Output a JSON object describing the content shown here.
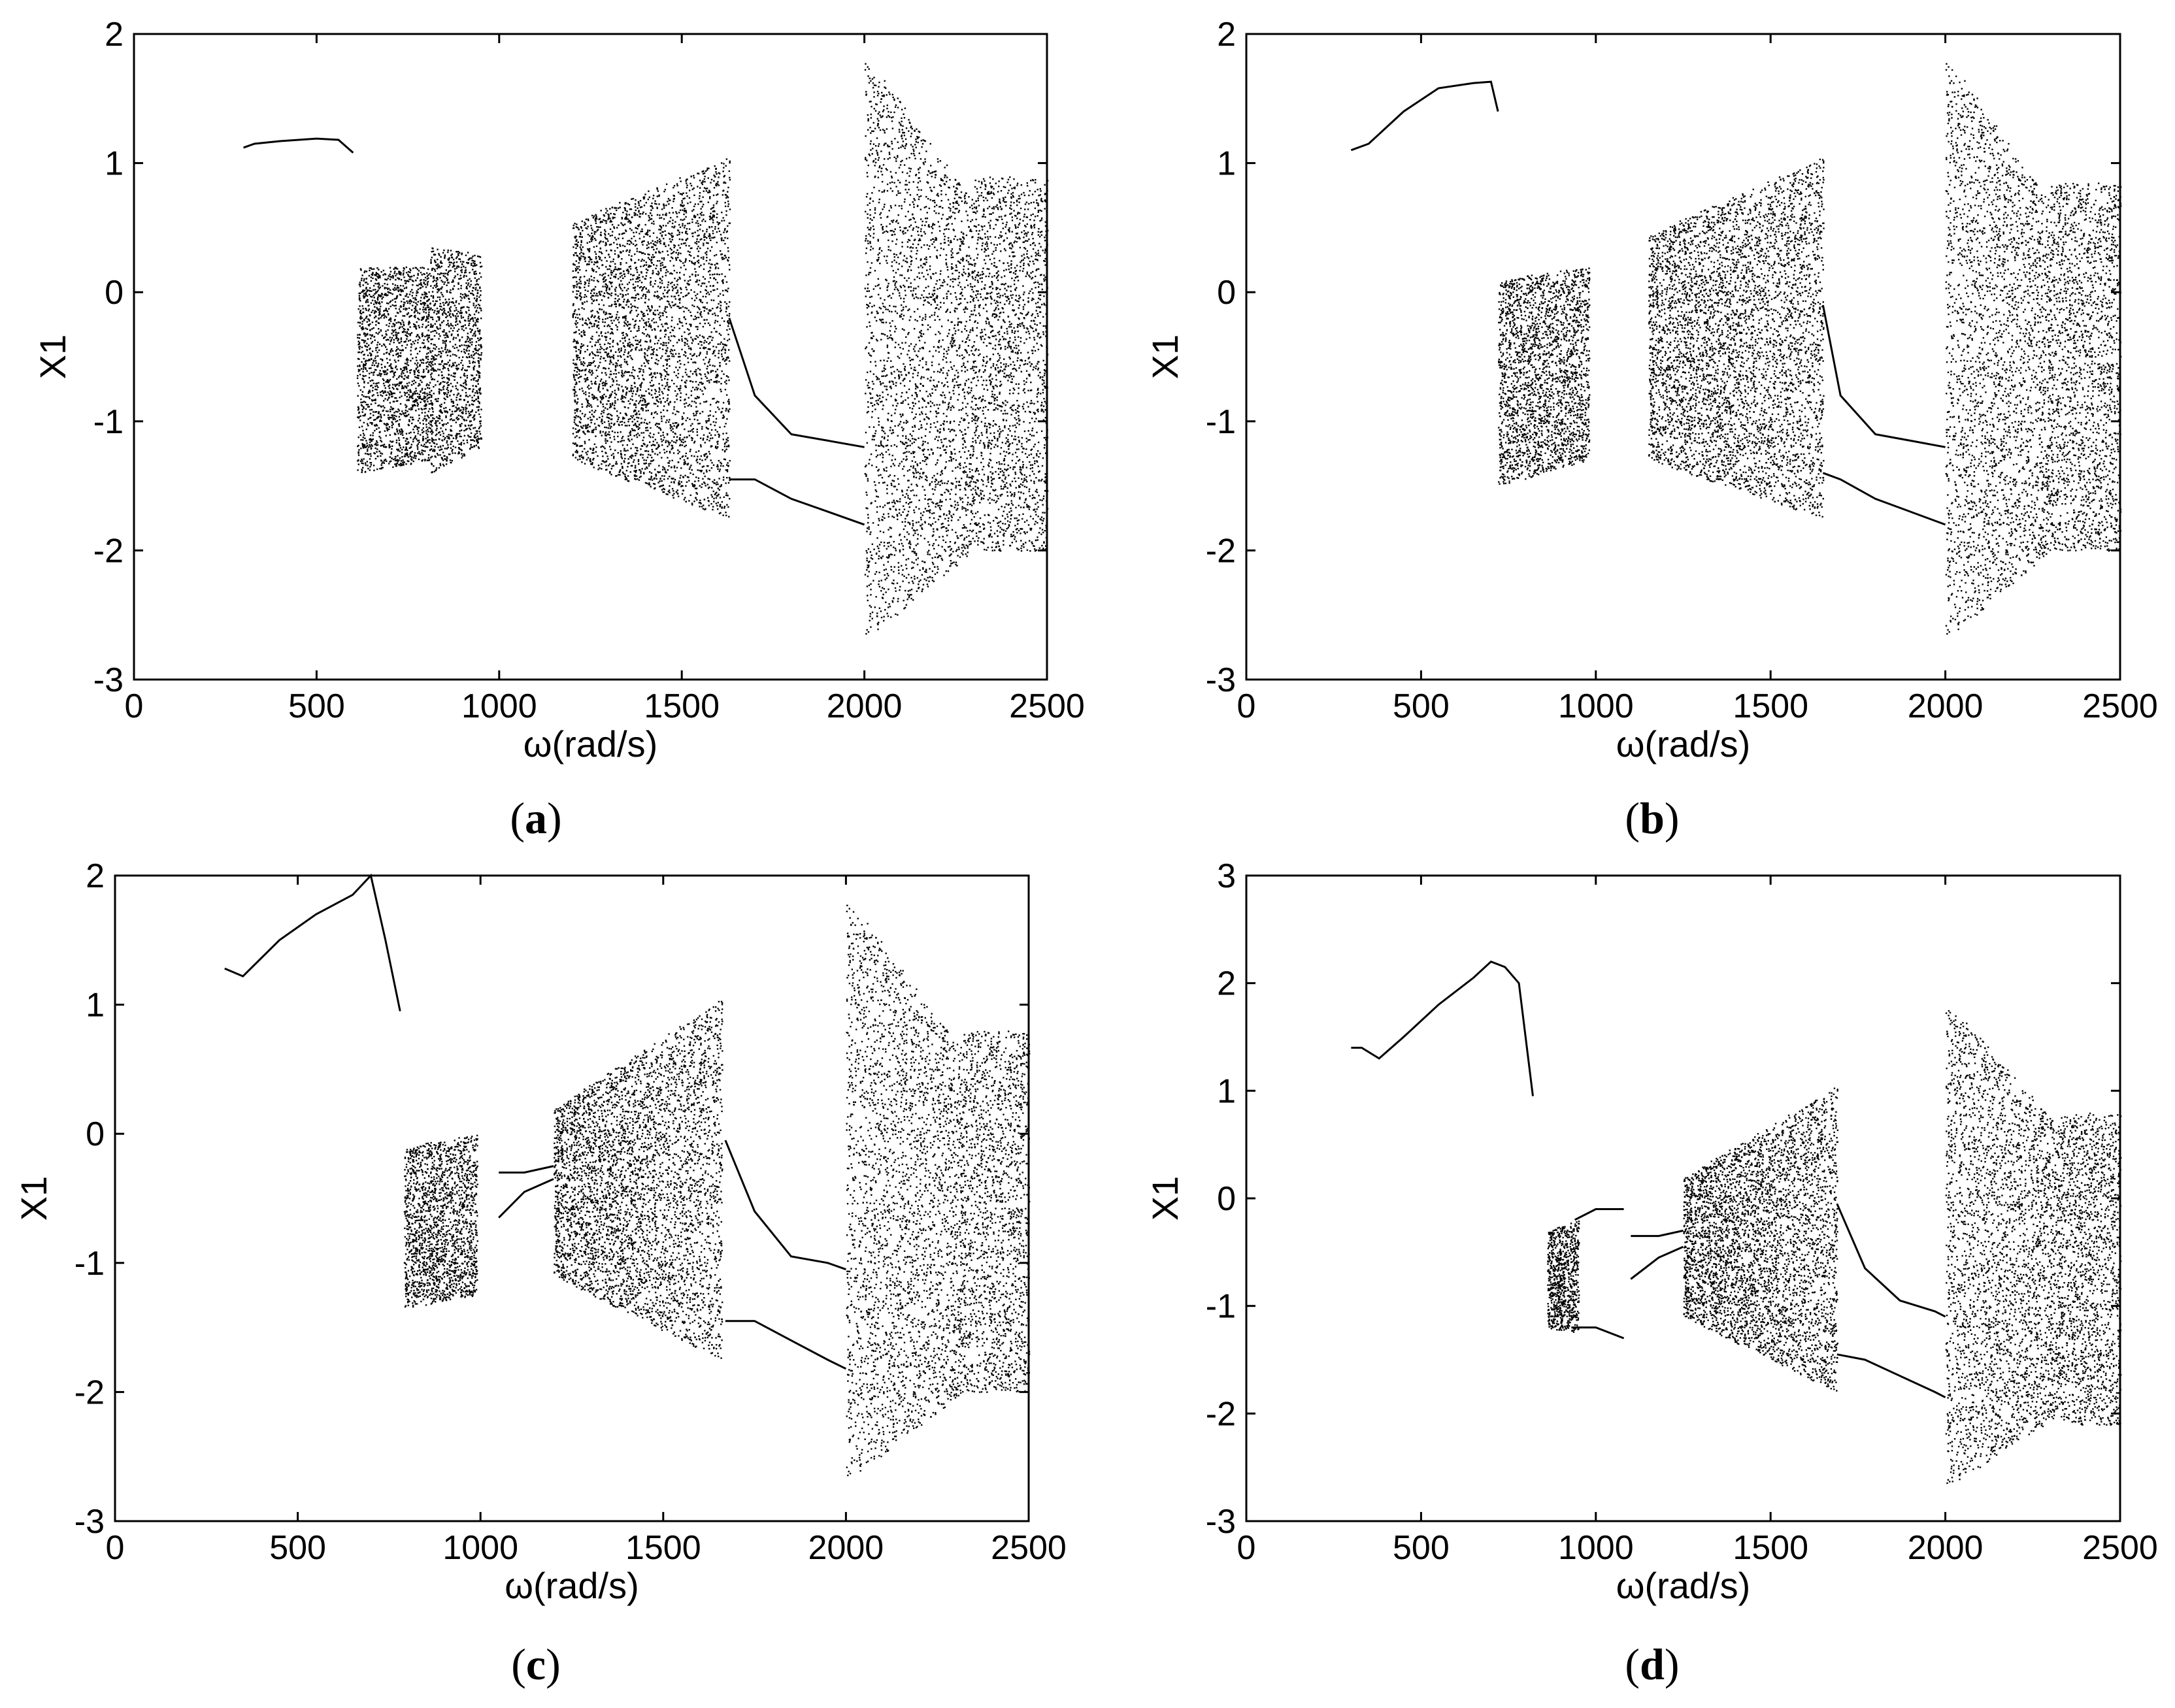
{
  "chart_data": [
    {
      "panel": "a",
      "type": "scatter",
      "xlabel": "ω(rad/s)",
      "ylabel": "X1",
      "xlim": [
        0,
        2500
      ],
      "ylim": [
        -3,
        2
      ],
      "xticks": [
        0,
        500,
        1000,
        1500,
        2000,
        2500
      ],
      "yticks": [
        -3,
        -2,
        -1,
        0,
        1,
        2
      ],
      "periodic_branches": [
        {
          "x": [
            300,
            330,
            400,
            500,
            560,
            600
          ],
          "y": [
            1.12,
            1.15,
            1.17,
            1.19,
            1.18,
            1.08
          ]
        },
        {
          "x": [
            1630,
            1700,
            1800,
            1900,
            2000
          ],
          "y": [
            -0.2,
            -0.8,
            -1.1,
            -1.15,
            -1.2
          ]
        },
        {
          "x": [
            1630,
            1700,
            1800,
            1900,
            2000
          ],
          "y": [
            -1.45,
            -1.45,
            -1.6,
            -1.7,
            -1.8
          ]
        }
      ],
      "chaotic_bands": [
        {
          "x": [
            610,
            810
          ],
          "ylow": [
            -1.4,
            -1.3
          ],
          "yhigh": [
            0.2,
            0.2
          ]
        },
        {
          "x": [
            810,
            950
          ],
          "ylow": [
            -1.4,
            -1.2
          ],
          "yhigh": [
            0.35,
            0.3
          ]
        },
        {
          "x": [
            1200,
            1630
          ],
          "ylow": [
            -1.3,
            -1.75
          ],
          "yhigh": [
            0.55,
            1.05
          ]
        },
        {
          "x": [
            2000,
            2300
          ],
          "ylow": [
            -2.7,
            -2.0
          ],
          "yhigh": [
            1.85,
            0.7
          ]
        },
        {
          "x": [
            2300,
            2500
          ],
          "ylow": [
            -2.0,
            -2.0
          ],
          "yhigh": [
            0.9,
            0.9
          ]
        }
      ]
    },
    {
      "panel": "b",
      "type": "scatter",
      "xlabel": "ω(rad/s)",
      "ylabel": "X1",
      "xlim": [
        0,
        2500
      ],
      "ylim": [
        -3,
        2
      ],
      "xticks": [
        0,
        500,
        1000,
        1500,
        2000,
        2500
      ],
      "yticks": [
        -3,
        -2,
        -1,
        0,
        1,
        2
      ],
      "periodic_branches": [
        {
          "x": [
            300,
            350,
            450,
            550,
            650,
            700,
            720
          ],
          "y": [
            1.1,
            1.15,
            1.4,
            1.58,
            1.62,
            1.63,
            1.4
          ]
        },
        {
          "x": [
            1650,
            1700,
            1800,
            1900,
            2000
          ],
          "y": [
            -0.1,
            -0.8,
            -1.1,
            -1.15,
            -1.2
          ]
        },
        {
          "x": [
            1650,
            1700,
            1800,
            1900,
            2000
          ],
          "y": [
            -1.4,
            -1.45,
            -1.6,
            -1.7,
            -1.8
          ]
        }
      ],
      "chaotic_bands": [
        {
          "x": [
            720,
            980
          ],
          "ylow": [
            -1.5,
            -1.3
          ],
          "yhigh": [
            0.1,
            0.2
          ]
        },
        {
          "x": [
            1150,
            1650
          ],
          "ylow": [
            -1.3,
            -1.75
          ],
          "yhigh": [
            0.45,
            1.05
          ]
        },
        {
          "x": [
            2000,
            2300
          ],
          "ylow": [
            -2.7,
            -2.0
          ],
          "yhigh": [
            1.85,
            0.7
          ]
        },
        {
          "x": [
            2300,
            2500
          ],
          "ylow": [
            -2.0,
            -2.0
          ],
          "yhigh": [
            0.85,
            0.85
          ]
        }
      ]
    },
    {
      "panel": "c",
      "type": "scatter",
      "xlabel": "ω(rad/s)",
      "ylabel": "X1",
      "xlim": [
        0,
        2500
      ],
      "ylim": [
        -3,
        2
      ],
      "xticks": [
        0,
        500,
        1000,
        1500,
        2000,
        2500
      ],
      "yticks": [
        -3,
        -2,
        -1,
        0,
        1,
        2
      ],
      "periodic_branches": [
        {
          "x": [
            300,
            350,
            450,
            550,
            650,
            700,
            740,
            780
          ],
          "y": [
            1.28,
            1.22,
            1.5,
            1.7,
            1.85,
            2.0,
            1.5,
            0.95
          ]
        },
        {
          "x": [
            1050,
            1120,
            1200
          ],
          "y": [
            -0.3,
            -0.3,
            -0.25
          ]
        },
        {
          "x": [
            1050,
            1120,
            1200
          ],
          "y": [
            -0.65,
            -0.45,
            -0.35
          ]
        },
        {
          "x": [
            1670,
            1750,
            1850,
            1950,
            2000
          ],
          "y": [
            -0.05,
            -0.6,
            -0.95,
            -1.0,
            -1.05
          ]
        },
        {
          "x": [
            1670,
            1750,
            1850,
            1950,
            2000
          ],
          "y": [
            -1.45,
            -1.45,
            -1.6,
            -1.75,
            -1.82
          ]
        }
      ],
      "chaotic_bands": [
        {
          "x": [
            790,
            990
          ],
          "ylow": [
            -1.35,
            -1.25
          ],
          "yhigh": [
            -0.1,
            0.0
          ]
        },
        {
          "x": [
            1200,
            1660
          ],
          "ylow": [
            -1.1,
            -1.75
          ],
          "yhigh": [
            0.2,
            1.05
          ]
        },
        {
          "x": [
            2000,
            2320
          ],
          "ylow": [
            -2.7,
            -2.0
          ],
          "yhigh": [
            1.85,
            0.65
          ]
        },
        {
          "x": [
            2320,
            2500
          ],
          "ylow": [
            -2.0,
            -2.0
          ],
          "yhigh": [
            0.8,
            0.8
          ]
        }
      ]
    },
    {
      "panel": "d",
      "type": "scatter",
      "xlabel": "ω(rad/s)",
      "ylabel": "X1",
      "xlim": [
        0,
        2500
      ],
      "ylim": [
        -3,
        3
      ],
      "xticks": [
        0,
        500,
        1000,
        1500,
        2000,
        2500
      ],
      "yticks": [
        -3,
        -2,
        -1,
        0,
        1,
        2,
        3
      ],
      "periodic_branches": [
        {
          "x": [
            300,
            330,
            380,
            450,
            550,
            650,
            700,
            740,
            780,
            820
          ],
          "y": [
            1.4,
            1.4,
            1.3,
            1.5,
            1.8,
            2.05,
            2.2,
            2.15,
            2.0,
            0.95
          ]
        },
        {
          "x": [
            940,
            1000,
            1080
          ],
          "y": [
            -0.2,
            -0.1,
            -0.1
          ]
        },
        {
          "x": [
            930,
            1000,
            1080
          ],
          "y": [
            -1.2,
            -1.2,
            -1.3
          ]
        },
        {
          "x": [
            1100,
            1180,
            1250
          ],
          "y": [
            -0.35,
            -0.35,
            -0.3
          ]
        },
        {
          "x": [
            1100,
            1180,
            1250
          ],
          "y": [
            -0.75,
            -0.55,
            -0.45
          ]
        },
        {
          "x": [
            1690,
            1770,
            1870,
            1970,
            2000
          ],
          "y": [
            -0.05,
            -0.65,
            -0.95,
            -1.05,
            -1.1
          ]
        },
        {
          "x": [
            1690,
            1770,
            1870,
            1970,
            2000
          ],
          "y": [
            -1.45,
            -1.5,
            -1.65,
            -1.8,
            -1.85
          ]
        }
      ],
      "chaotic_bands": [
        {
          "x": [
            860,
            950
          ],
          "ylow": [
            -1.2,
            -1.25
          ],
          "yhigh": [
            -0.3,
            -0.2
          ]
        },
        {
          "x": [
            1250,
            1690
          ],
          "ylow": [
            -1.1,
            -1.8
          ],
          "yhigh": [
            0.2,
            1.05
          ]
        },
        {
          "x": [
            2000,
            2330
          ],
          "ylow": [
            -2.7,
            -2.0
          ],
          "yhigh": [
            1.85,
            0.65
          ]
        },
        {
          "x": [
            2330,
            2500
          ],
          "ylow": [
            -2.1,
            -2.1
          ],
          "yhigh": [
            0.8,
            0.8
          ]
        }
      ]
    }
  ],
  "labels": {
    "panel_open": "(",
    "panel_close": ")",
    "a": "a",
    "b": "b",
    "c": "c",
    "d": "d"
  }
}
